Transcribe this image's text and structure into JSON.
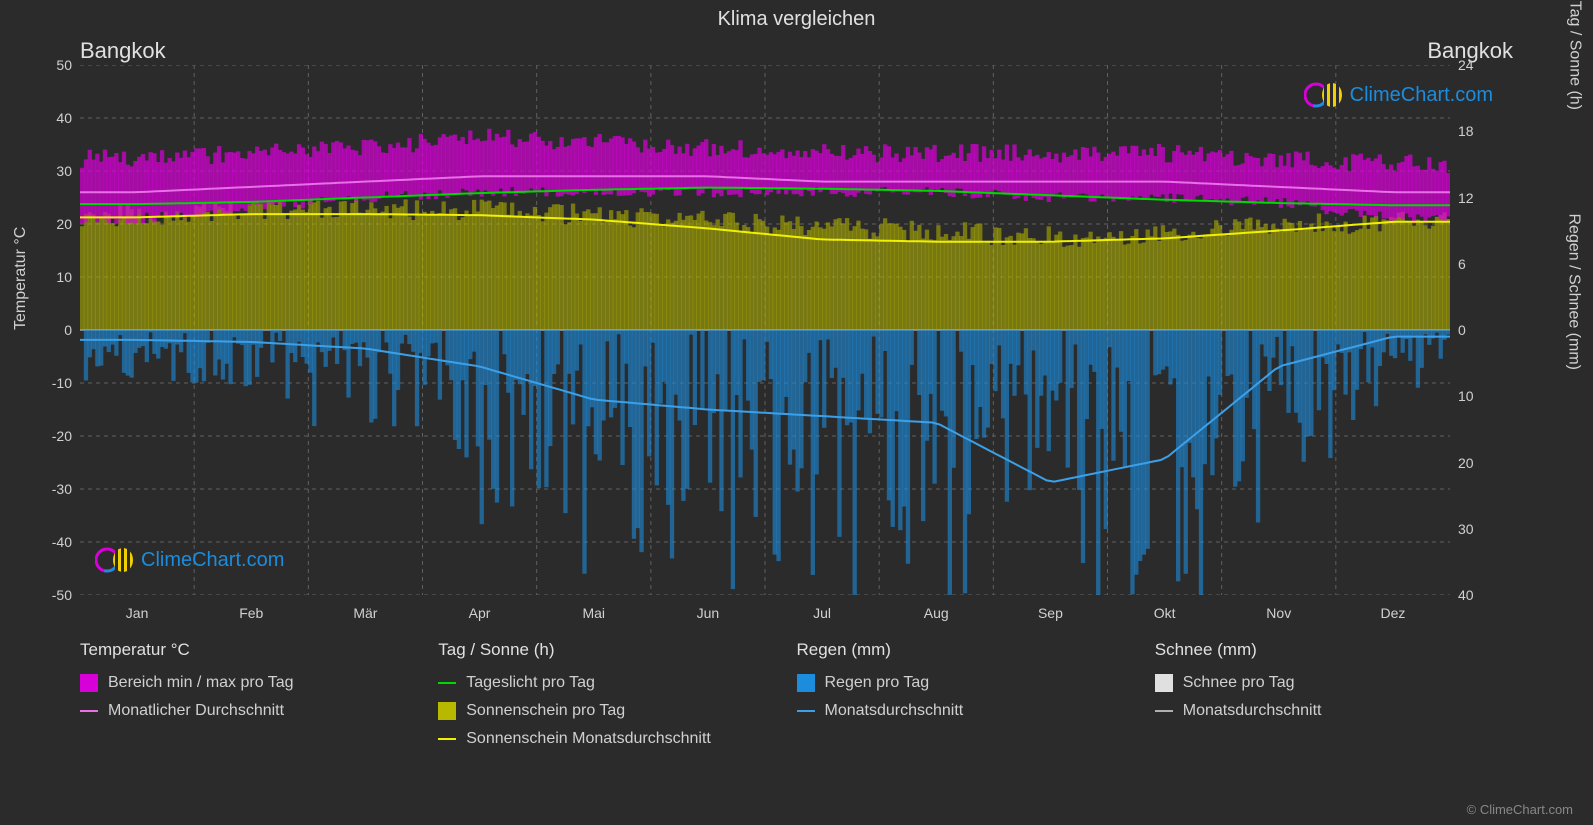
{
  "title": "Klima vergleichen",
  "city_left": "Bangkok",
  "city_right": "Bangkok",
  "watermark_text": "ClimeChart.com",
  "copyright": "© ClimeChart.com",
  "chart": {
    "background_color": "#2b2b2b",
    "grid_color": "#606060",
    "grid_dash": "4,4",
    "baseline_color": "#a0a0a0",
    "axis_font_size": 14,
    "label_font_size": 16,
    "title_font_size": 20,
    "months": [
      "Jan",
      "Feb",
      "Mär",
      "Apr",
      "Mai",
      "Jun",
      "Jul",
      "Aug",
      "Sep",
      "Okt",
      "Nov",
      "Dez"
    ],
    "left_axis": {
      "label": "Temperatur °C",
      "min": -50,
      "max": 50,
      "step": 10,
      "ticks": [
        50,
        40,
        30,
        20,
        10,
        0,
        -10,
        -20,
        -30,
        -40,
        -50
      ]
    },
    "right_axis_top": {
      "label": "Tag / Sonne (h)",
      "min": 0,
      "max": 24,
      "step": 6,
      "ticks": [
        24,
        18,
        12,
        6,
        0
      ]
    },
    "right_axis_bottom": {
      "label": "Regen / Schnee (mm)",
      "min": 0,
      "max": 40,
      "step": 10,
      "ticks": [
        0,
        10,
        20,
        30,
        40
      ]
    },
    "colors": {
      "temp_range": "#d800d8",
      "temp_avg": "#e86fe8",
      "daylight": "#00d800",
      "sunshine_bars": "#b8b800",
      "sunshine_avg": "#f0f000",
      "rain_bars": "#1c8cdc",
      "rain_avg": "#3ca0e8",
      "snow_bars": "#e0e0e0",
      "snow_avg": "#b0b0b0"
    },
    "series": {
      "temp_max_day": [
        32,
        33,
        34,
        36,
        35,
        34,
        33,
        33,
        33,
        33,
        32,
        31
      ],
      "temp_min_day": [
        21,
        23,
        25,
        26,
        26,
        26,
        26,
        26,
        25,
        25,
        24,
        21
      ],
      "temp_avg_month": [
        26,
        27,
        28,
        29,
        29,
        29,
        28,
        28,
        28,
        28,
        27,
        26
      ],
      "daylight_h": [
        11.4,
        11.6,
        12.0,
        12.4,
        12.7,
        12.9,
        12.8,
        12.6,
        12.2,
        11.8,
        11.5,
        11.3
      ],
      "sunshine_daily_h_max": [
        10,
        10.5,
        10.5,
        10.5,
        10,
        9.5,
        9,
        8.5,
        8,
        8.5,
        9,
        9.5
      ],
      "sunshine_avg_h": [
        10.2,
        10.5,
        10.5,
        10.4,
        10.0,
        9.2,
        8.2,
        8.0,
        8.0,
        8.3,
        9.0,
        9.8
      ],
      "rain_avg_mm": [
        1.5,
        1.8,
        2.8,
        5.5,
        10.5,
        12.0,
        13.0,
        14.0,
        23.0,
        19.5,
        5.5,
        1.0
      ],
      "rain_daily_max_mm": [
        8,
        10,
        15,
        25,
        35,
        38,
        40,
        40,
        40,
        40,
        25,
        8
      ]
    }
  },
  "legend": {
    "col1_header": "Temperatur °C",
    "col1_item1": "Bereich min / max pro Tag",
    "col1_item2": "Monatlicher Durchschnitt",
    "col2_header": "Tag / Sonne (h)",
    "col2_item1": "Tageslicht pro Tag",
    "col2_item2": "Sonnenschein pro Tag",
    "col2_item3": "Sonnenschein Monatsdurchschnitt",
    "col3_header": "Regen (mm)",
    "col3_item1": "Regen pro Tag",
    "col3_item2": "Monatsdurchschnitt",
    "col4_header": "Schnee (mm)",
    "col4_item1": "Schnee pro Tag",
    "col4_item2": "Monatsdurchschnitt"
  }
}
